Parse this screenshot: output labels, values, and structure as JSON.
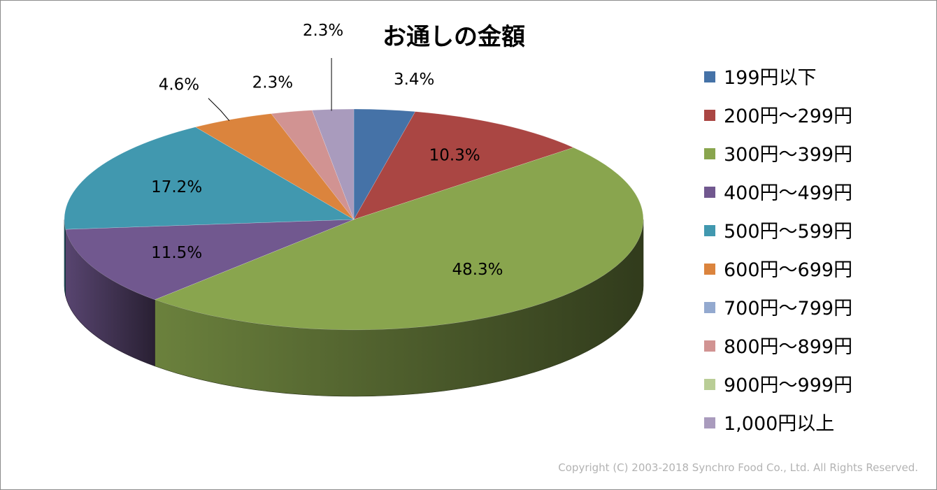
{
  "chart_data": {
    "type": "pie",
    "title": "お通しの金額",
    "legend_position": "right",
    "categories": [
      "199円以下",
      "200円～299円",
      "300円～399円",
      "400円～499円",
      "500円～599円",
      "600円～699円",
      "700円～799円",
      "800円～899円",
      "900円～999円",
      "1,000円以上"
    ],
    "values": [
      3.4,
      10.3,
      48.3,
      11.5,
      17.2,
      4.6,
      0,
      2.3,
      0,
      2.3
    ],
    "value_labels": [
      "3.4%",
      "10.3%",
      "48.3%",
      "11.5%",
      "17.2%",
      "4.6%",
      "",
      "2.3%",
      "",
      "2.3%"
    ],
    "colors": [
      "#4572a7",
      "#aa4643",
      "#89a54e",
      "#71588f",
      "#4198af",
      "#db843d",
      "#93a9cf",
      "#d19392",
      "#b9cd96",
      "#a99bbd"
    ]
  },
  "footer": {
    "copyright": "Copyright (C) 2003-2018  Synchro Food Co., Ltd. All Rights Reserved."
  }
}
